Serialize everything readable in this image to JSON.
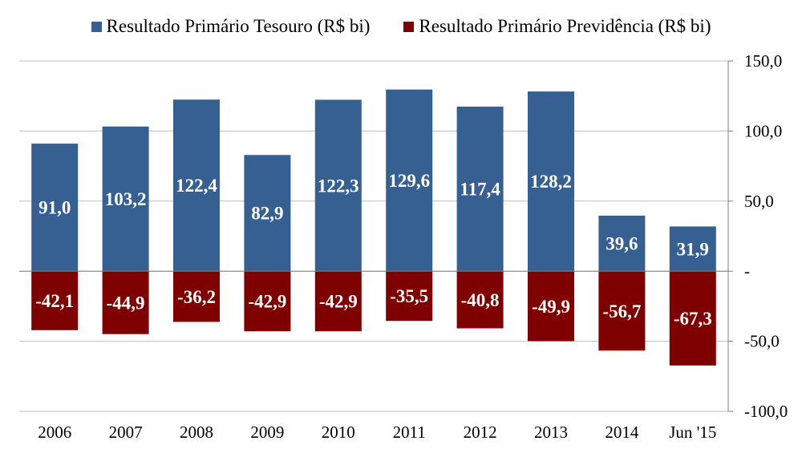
{
  "chart_data": {
    "type": "bar",
    "stacked": true,
    "categories": [
      "2006",
      "2007",
      "2008",
      "2009",
      "2010",
      "2011",
      "2012",
      "2013",
      "2014",
      "Jun '15"
    ],
    "series": [
      {
        "name": "Resultado Primário Tesouro (R$ bi)",
        "color": "#376092",
        "values": [
          91.0,
          103.2,
          122.4,
          82.9,
          122.3,
          129.6,
          117.4,
          128.2,
          39.6,
          31.9
        ],
        "labels": [
          "91,0",
          "103,2",
          "122,4",
          "82,9",
          "122,3",
          "129,6",
          "117,4",
          "128,2",
          "39,6",
          "31,9"
        ]
      },
      {
        "name": "Resultado Primário Previdência (R$ bi)",
        "color": "#7f0000",
        "values": [
          -42.1,
          -44.9,
          -36.2,
          -42.9,
          -42.9,
          -35.5,
          -40.8,
          -49.9,
          -56.7,
          -67.3
        ],
        "labels": [
          "-42,1",
          "-44,9",
          "-36,2",
          "-42,9",
          "-42,9",
          "-35,5",
          "-40,8",
          "-49,9",
          "-56,7",
          "-67,3"
        ]
      }
    ],
    "ylim": [
      -100,
      150
    ],
    "yticks": [
      150,
      100,
      50,
      0,
      -50,
      -100
    ],
    "ytick_labels": [
      "150,0",
      "100,0",
      "50,0",
      "-",
      "-50,0",
      "-100,0"
    ],
    "y_axis_side": "right",
    "legend_position": "top",
    "grid": true,
    "title": "",
    "xlabel": "",
    "ylabel": ""
  }
}
